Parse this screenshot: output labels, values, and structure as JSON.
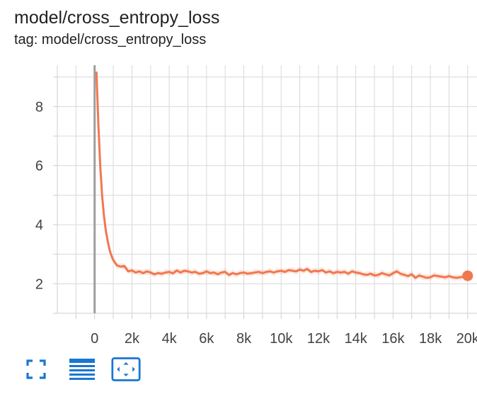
{
  "card": {
    "title": "model/cross_entropy_loss",
    "tag": "tag: model/cross_entropy_loss"
  },
  "toolbar": {
    "fullscreen_icon": "fullscreen-icon",
    "data_table_icon": "data-table-icon",
    "fit_domain_icon": "fit-to-data-icon",
    "accent_color": "#1976d2"
  },
  "chart_data": {
    "type": "line",
    "title": "",
    "xlabel": "",
    "ylabel": "",
    "xlim": [
      -2000,
      20500
    ],
    "ylim": [
      1.0,
      9.4
    ],
    "xticks": [
      0,
      2000,
      4000,
      6000,
      8000,
      10000,
      12000,
      14000,
      16000,
      18000,
      20000
    ],
    "xtick_labels": [
      "0",
      "2k",
      "4k",
      "6k",
      "8k",
      "10k",
      "12k",
      "14k",
      "16k",
      "18k",
      "20k"
    ],
    "yticks": [
      2,
      4,
      6,
      8
    ],
    "ytick_labels": [
      "2",
      "4",
      "6",
      "8"
    ],
    "grid": true,
    "legend": "none",
    "series": [
      {
        "color": "#f07850",
        "smoothed_x": [
          100,
          200,
          300,
          400,
          500,
          600,
          700,
          800,
          900,
          1000,
          1200,
          1400,
          1600,
          1800,
          2000,
          2200,
          2400,
          2600,
          2800,
          3000,
          3200,
          3400,
          3600,
          3800,
          4000,
          4200,
          4400,
          4600,
          4800,
          5000,
          5200,
          5400,
          5600,
          5800,
          6000,
          6200,
          6400,
          6600,
          6800,
          7000,
          7200,
          7400,
          7600,
          7800,
          8000,
          8200,
          8400,
          8600,
          8800,
          9000,
          9200,
          9400,
          9600,
          9800,
          10000,
          10200,
          10400,
          10600,
          10800,
          11000,
          11200,
          11400,
          11600,
          11800,
          12000,
          12200,
          12400,
          12600,
          12800,
          13000,
          13200,
          13400,
          13600,
          13800,
          14000,
          14200,
          14400,
          14600,
          14800,
          15000,
          15200,
          15400,
          15600,
          15800,
          16000,
          16200,
          16400,
          16600,
          16800,
          17000,
          17200,
          17400,
          17600,
          17800,
          18000,
          18200,
          18400,
          18600,
          18800,
          19000,
          19200,
          19400,
          19600,
          19800,
          20000
        ],
        "smoothed_y": [
          9.15,
          7.4,
          6.0,
          5.0,
          4.3,
          3.8,
          3.45,
          3.15,
          2.95,
          2.8,
          2.62,
          2.58,
          2.6,
          2.42,
          2.45,
          2.38,
          2.42,
          2.36,
          2.42,
          2.38,
          2.32,
          2.36,
          2.34,
          2.38,
          2.4,
          2.35,
          2.45,
          2.38,
          2.44,
          2.42,
          2.38,
          2.4,
          2.34,
          2.36,
          2.42,
          2.36,
          2.38,
          2.32,
          2.38,
          2.4,
          2.3,
          2.36,
          2.32,
          2.36,
          2.38,
          2.34,
          2.36,
          2.38,
          2.4,
          2.36,
          2.4,
          2.42,
          2.38,
          2.42,
          2.44,
          2.4,
          2.46,
          2.44,
          2.42,
          2.48,
          2.44,
          2.5,
          2.4,
          2.44,
          2.42,
          2.46,
          2.38,
          2.42,
          2.36,
          2.4,
          2.38,
          2.4,
          2.34,
          2.42,
          2.38,
          2.36,
          2.32,
          2.3,
          2.34,
          2.28,
          2.3,
          2.36,
          2.32,
          2.28,
          2.36,
          2.42,
          2.34,
          2.3,
          2.26,
          2.32,
          2.2,
          2.28,
          2.24,
          2.2,
          2.22,
          2.28,
          2.26,
          2.24,
          2.22,
          2.26,
          2.22,
          2.2,
          2.22,
          2.24,
          2.27
        ],
        "raw_band": 0.12,
        "last_point": {
          "x": 20000,
          "y": 2.27
        }
      }
    ]
  }
}
